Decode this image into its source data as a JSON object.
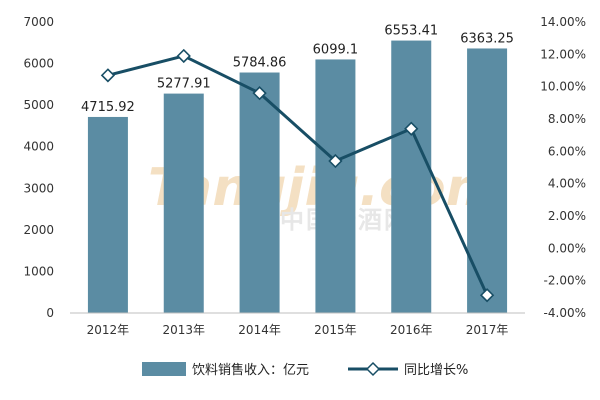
{
  "watermark": {
    "latin": "Tangjiu.com",
    "cjk": "中国糖酒网"
  },
  "chart_data": {
    "type": "bar",
    "categories": [
      "2012年",
      "2013年",
      "2014年",
      "2015年",
      "2016年",
      "2017年"
    ],
    "series": [
      {
        "name": "饮料销售收入：亿元",
        "type": "bar",
        "axis": "left",
        "values": [
          4715.92,
          5277.91,
          5784.86,
          6099.1,
          6553.41,
          6363.25
        ],
        "labels": [
          "4715.92",
          "5277.91",
          "5784.86",
          "6099.1",
          "6553.41",
          "6363.25"
        ],
        "color": "#5b8ca3"
      },
      {
        "name": "同比增长%",
        "type": "line",
        "axis": "right",
        "values": [
          10.7,
          11.9,
          9.6,
          5.4,
          7.4,
          -2.9
        ],
        "color": "#184e65"
      }
    ],
    "y_left": {
      "min": 0,
      "max": 7000,
      "step": 1000,
      "ticks": [
        "0",
        "1000",
        "2000",
        "3000",
        "4000",
        "5000",
        "6000",
        "7000"
      ]
    },
    "y_right": {
      "min": -4,
      "max": 14,
      "step": 2,
      "ticks": [
        "-4.00%",
        "-2.00%",
        "0.00%",
        "2.00%",
        "4.00%",
        "6.00%",
        "8.00%",
        "10.00%",
        "12.00%",
        "14.00%"
      ]
    },
    "grid": false,
    "legend": "bottom"
  }
}
